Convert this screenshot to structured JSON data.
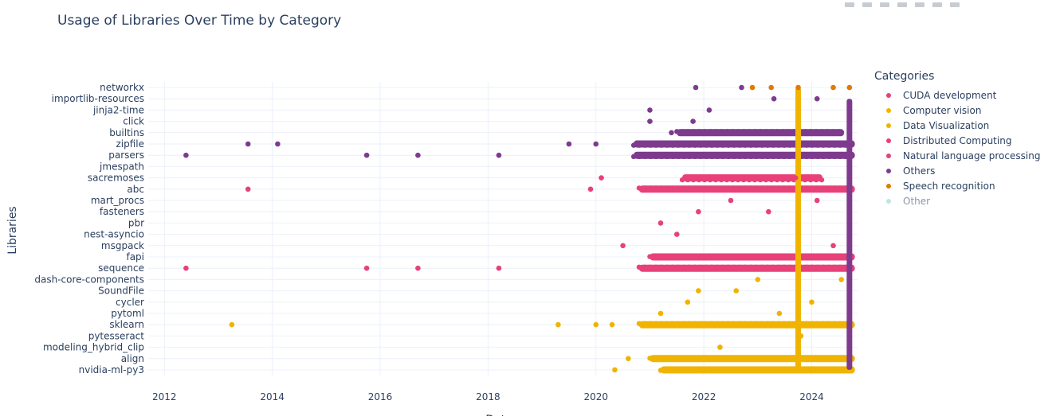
{
  "chart_data": {
    "type": "scatter",
    "title": "Usage of Libraries Over Time by Category",
    "xlabel": "Date",
    "ylabel": "Libraries",
    "xlim": [
      2011.7,
      2024.85
    ],
    "xticks": [
      "2012",
      "2014",
      "2016",
      "2018",
      "2020",
      "2022",
      "2024"
    ],
    "categories": [
      "nvidia-ml-py3",
      "align",
      "modeling_hybrid_clip",
      "pytesseract",
      "sklearn",
      "pytoml",
      "cycler",
      "SoundFile",
      "dash-core-components",
      "sequence",
      "fapi",
      "msgpack",
      "nest-asyncio",
      "pbr",
      "fasteners",
      "mart_procs",
      "abc",
      "sacremoses",
      "jmespath",
      "parsers",
      "zipfile",
      "builtins",
      "click",
      "jinja2-time",
      "importlib-resources",
      "networkx"
    ],
    "grid": true,
    "legend_title": "Categories",
    "legend_position": "right",
    "series": [
      {
        "name": "CUDA development",
        "color": "#e8417a",
        "symbol": "circle"
      },
      {
        "name": "Computer vision",
        "color": "#f0b400",
        "symbol": "circle"
      },
      {
        "name": "Data Visualization",
        "color": "#f0b400",
        "symbol": "circle",
        "libraries": [
          "nvidia-ml-py3",
          "align",
          "modeling_hybrid_clip",
          "pytesseract",
          "sklearn",
          "pytoml",
          "cycler",
          "SoundFile",
          "dash-core-components"
        ]
      },
      {
        "name": "Distributed Computing",
        "color": "#e8417a",
        "symbol": "circle",
        "libraries": [
          "sequence",
          "fapi",
          "msgpack",
          "nest-asyncio",
          "pbr",
          "fasteners",
          "mart_procs",
          "abc",
          "sacremoses"
        ]
      },
      {
        "name": "Natural language processing",
        "color": "#e0457b",
        "symbol": "circle"
      },
      {
        "name": "Others",
        "color": "#7e3b8e",
        "symbol": "circle",
        "libraries": [
          "jmespath",
          "parsers",
          "zipfile",
          "builtins",
          "click",
          "jinja2-time",
          "importlib-resources",
          "networkx"
        ]
      },
      {
        "name": "Speech recognition",
        "color": "#e07b00",
        "symbol": "circle"
      },
      {
        "name": "Other",
        "color": "#88d0cc",
        "symbol": "circle",
        "hidden": true
      }
    ],
    "points": [
      {
        "x": 2013.25,
        "y": "sklearn",
        "color": "#f0b400"
      },
      {
        "x": 2019.3,
        "y": "sklearn",
        "color": "#f0b400"
      },
      {
        "x": 2020.0,
        "y": "sklearn",
        "color": "#f0b400"
      },
      {
        "x": 2020.3,
        "y": "sklearn",
        "color": "#f0b400"
      },
      {
        "x": 2020.35,
        "y": "nvidia-ml-py3",
        "color": "#f0b400"
      },
      {
        "x": 2020.6,
        "y": "align",
        "color": "#f0b400"
      },
      {
        "x": 2021.2,
        "y": "pytoml",
        "color": "#f0b400"
      },
      {
        "x": 2021.7,
        "y": "cycler",
        "color": "#f0b400"
      },
      {
        "x": 2021.9,
        "y": "SoundFile",
        "color": "#f0b400"
      },
      {
        "x": 2022.3,
        "y": "modeling_hybrid_clip",
        "color": "#f0b400"
      },
      {
        "x": 2022.6,
        "y": "SoundFile",
        "color": "#f0b400"
      },
      {
        "x": 2023.0,
        "y": "dash-core-components",
        "color": "#f0b400"
      },
      {
        "x": 2023.4,
        "y": "pytoml",
        "color": "#f0b400"
      },
      {
        "x": 2023.8,
        "y": "pytesseract",
        "color": "#f0b400"
      },
      {
        "x": 2024.0,
        "y": "cycler",
        "color": "#f0b400"
      },
      {
        "x": 2024.55,
        "y": "dash-core-components",
        "color": "#f0b400"
      },
      {
        "x": 2012.4,
        "y": "sequence",
        "color": "#e8417a"
      },
      {
        "x": 2013.55,
        "y": "abc",
        "color": "#e8417a"
      },
      {
        "x": 2015.75,
        "y": "sequence",
        "color": "#e8417a"
      },
      {
        "x": 2016.7,
        "y": "sequence",
        "color": "#e8417a"
      },
      {
        "x": 2018.2,
        "y": "sequence",
        "color": "#e8417a"
      },
      {
        "x": 2019.9,
        "y": "abc",
        "color": "#e8417a"
      },
      {
        "x": 2020.1,
        "y": "sacremoses",
        "color": "#e8417a"
      },
      {
        "x": 2020.5,
        "y": "msgpack",
        "color": "#e8417a"
      },
      {
        "x": 2021.2,
        "y": "pbr",
        "color": "#e8417a"
      },
      {
        "x": 2021.5,
        "y": "nest-asyncio",
        "color": "#e8417a"
      },
      {
        "x": 2021.9,
        "y": "fasteners",
        "color": "#e8417a"
      },
      {
        "x": 2022.5,
        "y": "mart_procs",
        "color": "#e8417a"
      },
      {
        "x": 2023.2,
        "y": "fasteners",
        "color": "#e8417a"
      },
      {
        "x": 2023.7,
        "y": "sacremoses",
        "color": "#e8417a"
      },
      {
        "x": 2024.1,
        "y": "mart_procs",
        "color": "#e8417a"
      },
      {
        "x": 2024.4,
        "y": "msgpack",
        "color": "#e8417a"
      },
      {
        "x": 2012.4,
        "y": "parsers",
        "color": "#7e3b8e"
      },
      {
        "x": 2013.55,
        "y": "zipfile",
        "color": "#7e3b8e"
      },
      {
        "x": 2014.1,
        "y": "zipfile",
        "color": "#7e3b8e"
      },
      {
        "x": 2015.75,
        "y": "parsers",
        "color": "#7e3b8e"
      },
      {
        "x": 2016.7,
        "y": "parsers",
        "color": "#7e3b8e"
      },
      {
        "x": 2018.2,
        "y": "parsers",
        "color": "#7e3b8e"
      },
      {
        "x": 2019.5,
        "y": "zipfile",
        "color": "#7e3b8e"
      },
      {
        "x": 2020.0,
        "y": "zipfile",
        "color": "#7e3b8e"
      },
      {
        "x": 2021.0,
        "y": "click",
        "color": "#7e3b8e"
      },
      {
        "x": 2021.0,
        "y": "jinja2-time",
        "color": "#7e3b8e"
      },
      {
        "x": 2021.4,
        "y": "builtins",
        "color": "#7e3b8e"
      },
      {
        "x": 2021.8,
        "y": "click",
        "color": "#7e3b8e"
      },
      {
        "x": 2021.85,
        "y": "networkx",
        "color": "#7e3b8e"
      },
      {
        "x": 2022.1,
        "y": "jinja2-time",
        "color": "#7e3b8e"
      },
      {
        "x": 2022.7,
        "y": "networkx",
        "color": "#7e3b8e"
      },
      {
        "x": 2023.3,
        "y": "importlib-resources",
        "color": "#7e3b8e"
      },
      {
        "x": 2024.1,
        "y": "importlib-resources",
        "color": "#7e3b8e"
      },
      {
        "x": 2022.9,
        "y": "networkx",
        "color": "#e07b00"
      },
      {
        "x": 2023.25,
        "y": "networkx",
        "color": "#e07b00"
      },
      {
        "x": 2023.75,
        "y": "networkx",
        "color": "#e07b00"
      },
      {
        "x": 2024.4,
        "y": "networkx",
        "color": "#e07b00"
      },
      {
        "x": 2024.7,
        "y": "networkx",
        "color": "#e07b00"
      }
    ],
    "bands": [
      {
        "y": "sequence",
        "x": [
          2020.8,
          2024.8
        ],
        "color": "#e8417a"
      },
      {
        "y": "fapi",
        "x": [
          2021.0,
          2024.8
        ],
        "color": "#e8417a"
      },
      {
        "y": "abc",
        "x": [
          2020.8,
          2024.8
        ],
        "color": "#e8417a"
      },
      {
        "y": "sacremoses",
        "x": [
          2021.6,
          2024.2
        ],
        "color": "#e8417a"
      },
      {
        "y": "parsers",
        "x": [
          2020.7,
          2024.8
        ],
        "color": "#7e3b8e"
      },
      {
        "y": "zipfile",
        "x": [
          2020.7,
          2024.8
        ],
        "color": "#7e3b8e"
      },
      {
        "y": "builtins",
        "x": [
          2021.5,
          2024.6
        ],
        "color": "#7e3b8e"
      },
      {
        "y": "sklearn",
        "x": [
          2020.8,
          2024.8
        ],
        "color": "#f0b400"
      },
      {
        "y": "align",
        "x": [
          2021.0,
          2024.8
        ],
        "color": "#f0b400"
      },
      {
        "y": "nvidia-ml-py3",
        "x": [
          2021.2,
          2024.8
        ],
        "color": "#f0b400"
      }
    ],
    "vlines": [
      {
        "x": 2023.75,
        "y": [
          "nvidia-ml-py3",
          "networkx"
        ],
        "color": "#f0b400"
      },
      {
        "x": 2024.7,
        "y": [
          "nvidia-ml-py3",
          "importlib-resources"
        ],
        "color": "#7e3b8e"
      }
    ]
  }
}
